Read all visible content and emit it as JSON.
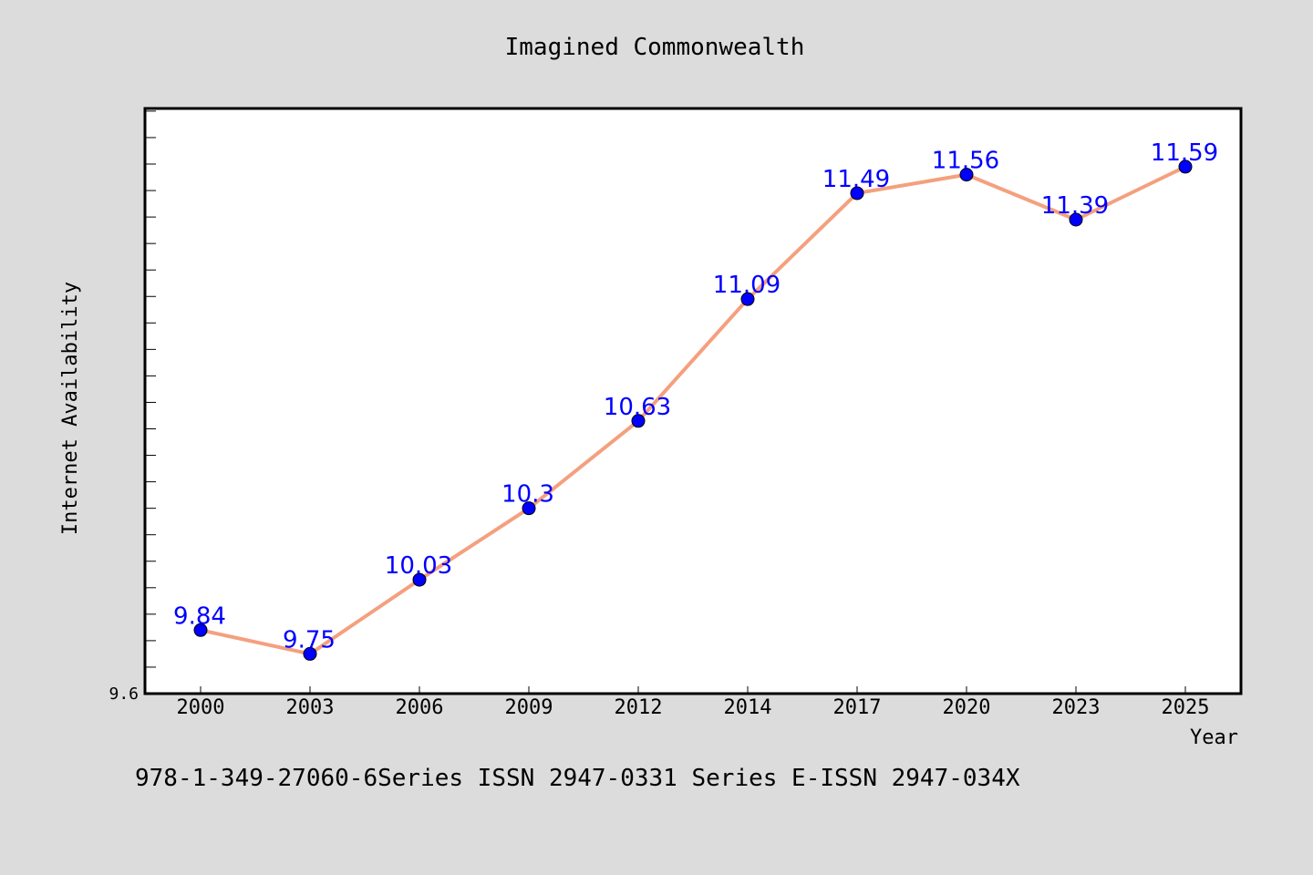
{
  "chart_data": {
    "type": "line",
    "title": "Imagined Commonwealth",
    "xlabel": "Year",
    "ylabel": "Internet Availability",
    "categories": [
      "2000",
      "2003",
      "2006",
      "2009",
      "2012",
      "2014",
      "2017",
      "2020",
      "2023",
      "2025"
    ],
    "series": [
      {
        "values": [
          9.84,
          9.75,
          10.03,
          10.3,
          10.63,
          11.09,
          11.49,
          11.56,
          11.39,
          11.59
        ],
        "line_color": "#f4a07f",
        "marker_color": "#0000ff"
      }
    ],
    "data_labels": [
      "9.84",
      "9.75",
      "10.03",
      "10.3",
      "10.63",
      "11.09",
      "11.49",
      "11.56",
      "11.39",
      "11.59"
    ],
    "y_tick_labels": [
      "9.6"
    ],
    "ylim": [
      9.6,
      11.81
    ],
    "grid": false,
    "legend": "none"
  },
  "footer_text": "978-1-349-27060-6Series ISSN 2947-0331 Series E-ISSN 2947-034X",
  "colors": {
    "background": "#dcdcdc",
    "plot_background": "#ffffff",
    "line": "#f4a07f",
    "marker": "#0000ff",
    "data_label": "#0000ff"
  }
}
